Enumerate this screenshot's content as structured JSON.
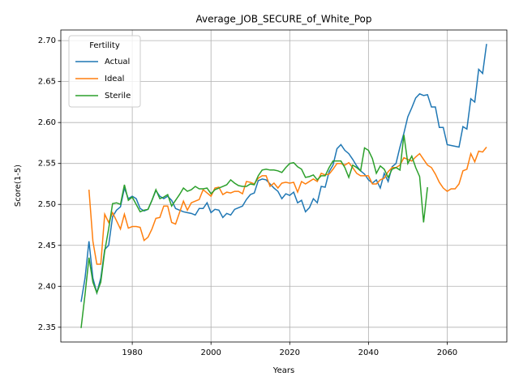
{
  "chart_data": {
    "type": "line",
    "title": "Average_JOB_SECURE_of_White_Pop",
    "x_label": "Years",
    "y_label": "Score(1-5)",
    "legend_title": "Fertility",
    "legend": "upper left",
    "grid": true,
    "xlim": [
      1961.85,
      2075.15
    ],
    "xticks": [
      1980,
      2000,
      2020,
      2040,
      2060
    ],
    "ylim": [
      2.332,
      2.713
    ],
    "yticks": [
      2.35,
      {
        "value": 2.4,
        "label": "2.40"
      },
      2.45,
      {
        "value": 2.5,
        "label": "2.50"
      },
      2.55,
      {
        "value": 2.6,
        "label": "2.60"
      },
      2.65,
      {
        "value": 2.7,
        "label": "2.70"
      }
    ],
    "x": [
      1967,
      1968,
      1969,
      1970,
      1971,
      1972,
      1973,
      1974,
      1975,
      1976,
      1977,
      1978,
      1979,
      1980,
      1981,
      1982,
      1983,
      1984,
      1985,
      1986,
      1987,
      1988,
      1989,
      1990,
      1991,
      1992,
      1993,
      1994,
      1995,
      1996,
      1997,
      1998,
      1999,
      2000,
      2001,
      2002,
      2003,
      2004,
      2005,
      2006,
      2007,
      2008,
      2009,
      2010,
      2011,
      2012,
      2013,
      2014,
      2015,
      2016,
      2017,
      2018,
      2019,
      2020,
      2021,
      2022,
      2023,
      2024,
      2025,
      2026,
      2027,
      2028,
      2029,
      2030,
      2031,
      2032,
      2033,
      2034,
      2035,
      2036,
      2037,
      2038,
      2039,
      2040,
      2041,
      2042,
      2043,
      2044,
      2045,
      2046,
      2047,
      2048,
      2049,
      2050,
      2051,
      2052,
      2053,
      2054,
      2055,
      2056,
      2057,
      2058,
      2059,
      2060,
      2061,
      2062,
      2063,
      2064,
      2065,
      2066,
      2067,
      2068,
      2069,
      2070
    ],
    "series": [
      {
        "name": "Actual",
        "color": "#1f77b4",
        "values": [
          2.381,
          2.41,
          2.455,
          2.41,
          2.392,
          2.41,
          2.445,
          2.45,
          2.485,
          2.493,
          2.497,
          2.52,
          2.507,
          2.51,
          2.507,
          2.495,
          2.492,
          2.494,
          2.505,
          2.517,
          2.51,
          2.507,
          2.51,
          2.505,
          2.495,
          2.493,
          2.491,
          2.49,
          2.489,
          2.487,
          2.495,
          2.495,
          2.502,
          2.49,
          2.494,
          2.493,
          2.484,
          2.489,
          2.487,
          2.494,
          2.496,
          2.498,
          2.506,
          2.512,
          2.514,
          2.529,
          2.531,
          2.53,
          2.525,
          2.52,
          2.516,
          2.507,
          2.513,
          2.511,
          2.515,
          2.502,
          2.505,
          2.491,
          2.496,
          2.507,
          2.502,
          2.522,
          2.521,
          2.54,
          2.548,
          2.568,
          2.573,
          2.566,
          2.562,
          2.555,
          2.547,
          2.541,
          2.537,
          2.53,
          2.526,
          2.53,
          2.52,
          2.538,
          2.528,
          2.546,
          2.55,
          2.57,
          2.587,
          2.607,
          2.618,
          2.63,
          2.635,
          2.633,
          2.634,
          2.619,
          2.619,
          2.594,
          2.594,
          2.573,
          2.572,
          2.571,
          2.57,
          2.595,
          2.592,
          2.629,
          2.625,
          2.665,
          2.66,
          2.696
        ]
      },
      {
        "name": "Ideal",
        "color": "#ff7f0e",
        "values": [
          null,
          null,
          2.518,
          2.455,
          2.427,
          2.427,
          2.488,
          2.478,
          2.49,
          2.48,
          2.47,
          2.488,
          2.471,
          2.473,
          2.473,
          2.472,
          2.456,
          2.46,
          2.47,
          2.483,
          2.484,
          2.498,
          2.498,
          2.478,
          2.476,
          2.49,
          2.504,
          2.493,
          2.502,
          2.504,
          2.506,
          2.518,
          2.514,
          2.51,
          2.52,
          2.521,
          2.512,
          2.515,
          2.514,
          2.516,
          2.516,
          2.513,
          2.528,
          2.527,
          2.525,
          2.532,
          2.535,
          2.535,
          2.522,
          2.526,
          2.52,
          2.526,
          2.527,
          2.526,
          2.527,
          2.515,
          2.528,
          2.525,
          2.528,
          2.531,
          2.528,
          2.538,
          2.536,
          2.537,
          2.543,
          2.55,
          2.55,
          2.548,
          2.551,
          2.545,
          2.538,
          2.535,
          2.535,
          2.535,
          2.525,
          2.525,
          2.53,
          2.532,
          2.54,
          2.545,
          2.545,
          2.548,
          2.557,
          2.555,
          2.553,
          2.558,
          2.562,
          2.555,
          2.548,
          2.545,
          2.537,
          2.527,
          2.52,
          2.516,
          2.519,
          2.519,
          2.525,
          2.541,
          2.543,
          2.562,
          2.552,
          2.565,
          2.564,
          2.57
        ]
      },
      {
        "name": "Sterile",
        "color": "#2ca02c",
        "values": [
          2.349,
          2.39,
          2.435,
          2.405,
          2.392,
          2.405,
          2.443,
          2.47,
          2.501,
          2.502,
          2.5,
          2.524,
          2.505,
          2.509,
          2.5,
          2.491,
          2.493,
          2.494,
          2.505,
          2.518,
          2.507,
          2.509,
          2.512,
          2.498,
          2.505,
          2.512,
          2.52,
          2.516,
          2.518,
          2.522,
          2.519,
          2.519,
          2.52,
          2.513,
          2.518,
          2.52,
          2.522,
          2.524,
          2.53,
          2.526,
          2.523,
          2.522,
          2.522,
          2.525,
          2.524,
          2.535,
          2.542,
          2.543,
          2.542,
          2.542,
          2.541,
          2.539,
          2.545,
          2.55,
          2.551,
          2.546,
          2.543,
          2.533,
          2.534,
          2.536,
          2.53,
          2.535,
          2.535,
          2.545,
          2.553,
          2.553,
          2.553,
          2.545,
          2.533,
          2.548,
          2.545,
          2.541,
          2.569,
          2.566,
          2.556,
          2.538,
          2.547,
          2.543,
          2.533,
          2.543,
          2.545,
          2.542,
          2.585,
          2.55,
          2.559,
          2.545,
          2.534,
          2.478,
          2.521,
          null,
          null,
          null,
          null,
          null,
          null,
          null,
          null,
          null,
          null,
          null,
          null,
          null,
          null,
          null
        ]
      }
    ]
  }
}
